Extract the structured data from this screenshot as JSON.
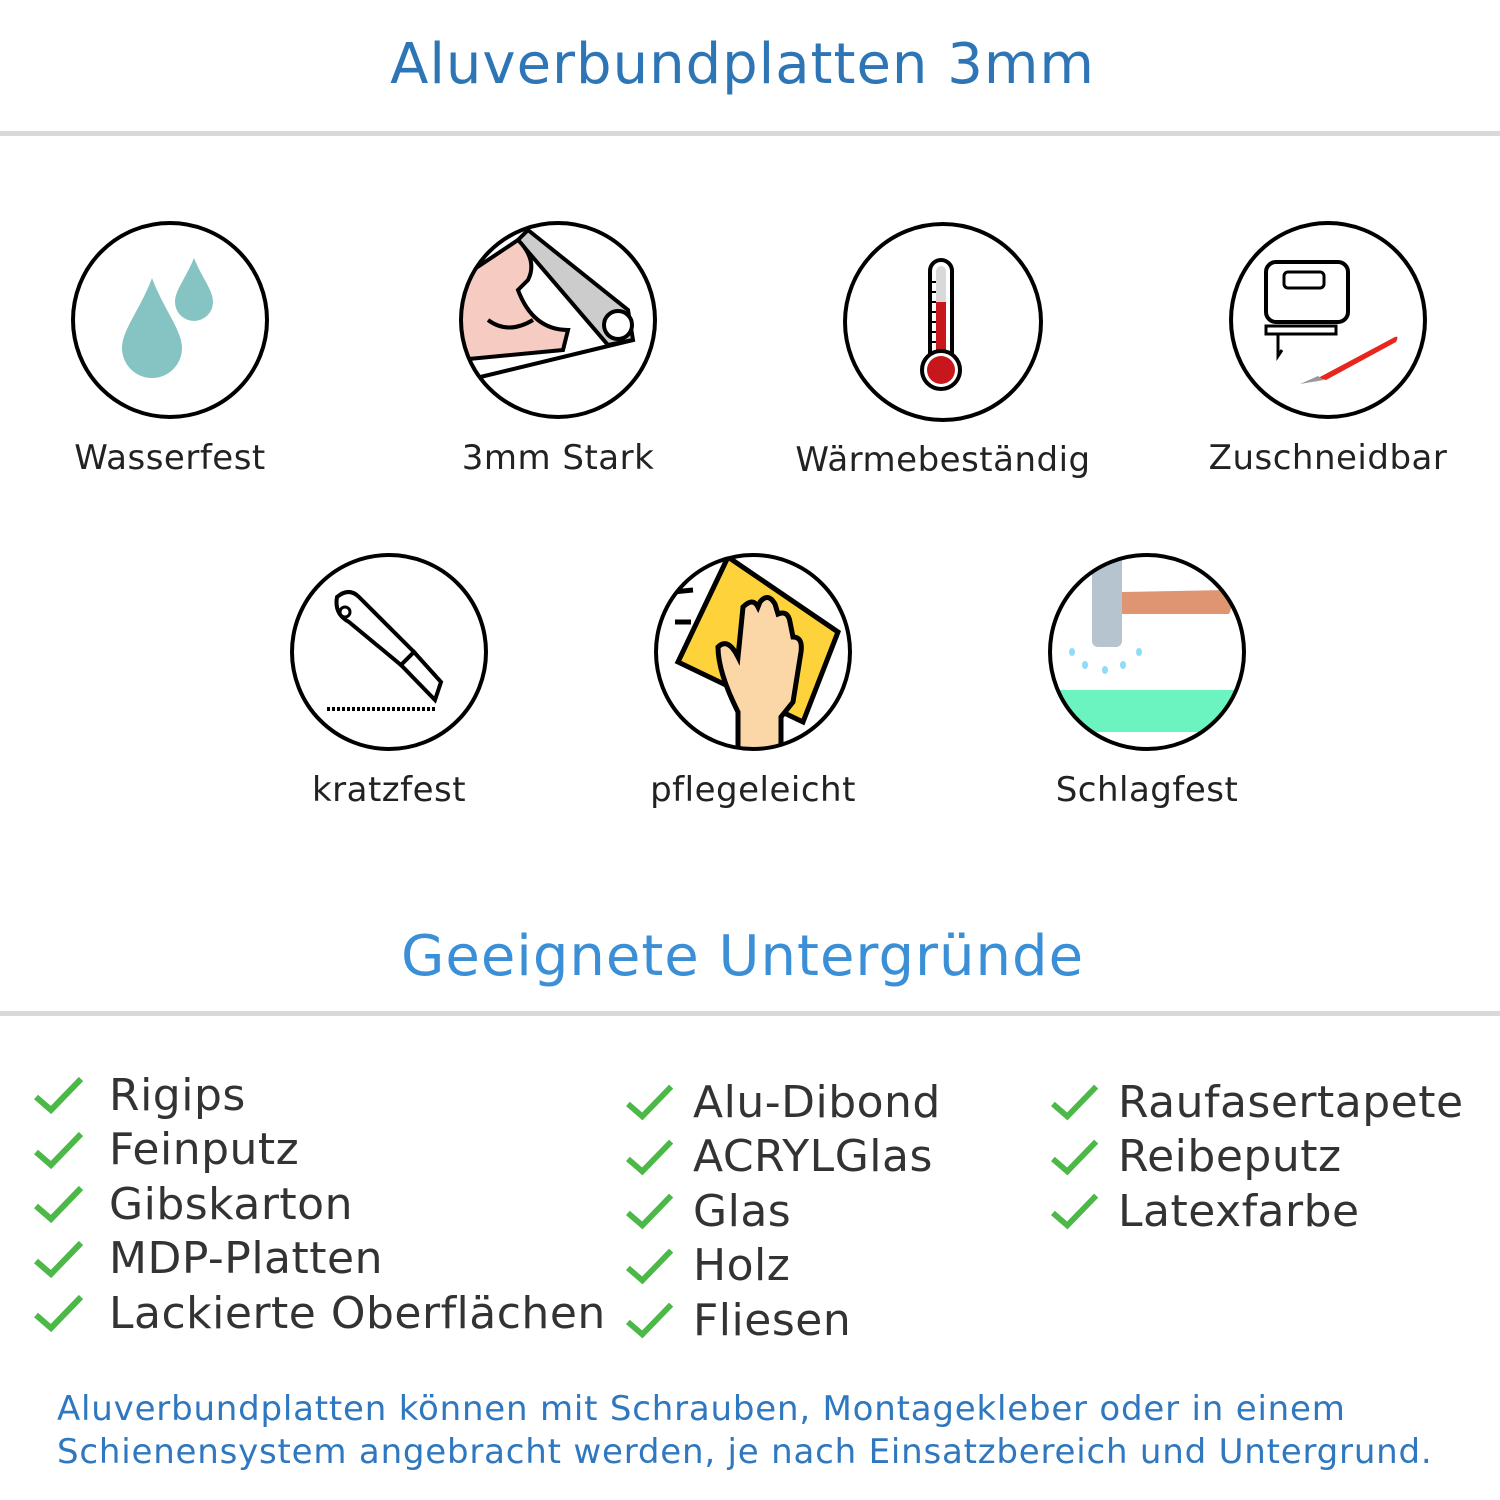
{
  "header": {
    "title": "Aluverbundplatten 3mm"
  },
  "features": [
    {
      "label": "Wasserfest",
      "icon": "water-drops-icon"
    },
    {
      "label": "3mm Stark",
      "icon": "strong-arm-icon"
    },
    {
      "label": "Wärmebeständig",
      "icon": "thermometer-icon"
    },
    {
      "label": "Zuschneidbar",
      "icon": "jigsaw-cutter-icon"
    },
    {
      "label": "kratzfest",
      "icon": "cutter-knife-icon"
    },
    {
      "label": "pflegeleicht",
      "icon": "cleaning-hand-icon"
    },
    {
      "label": "Schlagfest",
      "icon": "hammer-icon"
    }
  ],
  "surfaces": {
    "title": "Geeignete Untergründe",
    "columns": [
      [
        "Rigips",
        "Feinputz",
        "Gibskarton",
        "MDP-Platten",
        "Lackierte Oberflächen"
      ],
      [
        "Alu-Dibond",
        "ACRYLGlas",
        "Glas",
        "Holz",
        "Fliesen"
      ],
      [
        "Raufasertapete",
        "Reibeputz",
        "Latexfarbe"
      ]
    ]
  },
  "footer": {
    "line1": "Aluverbundplatten können mit Schrauben, Montagekleber oder in einem",
    "line2": "Schienensystem angebracht werden, je nach Einsatzbereich und Untergrund."
  },
  "colors": {
    "title": "#2e75b6",
    "subtitle": "#3a8fd6",
    "check": "#4cb848",
    "rule": "#d9d9d9"
  }
}
